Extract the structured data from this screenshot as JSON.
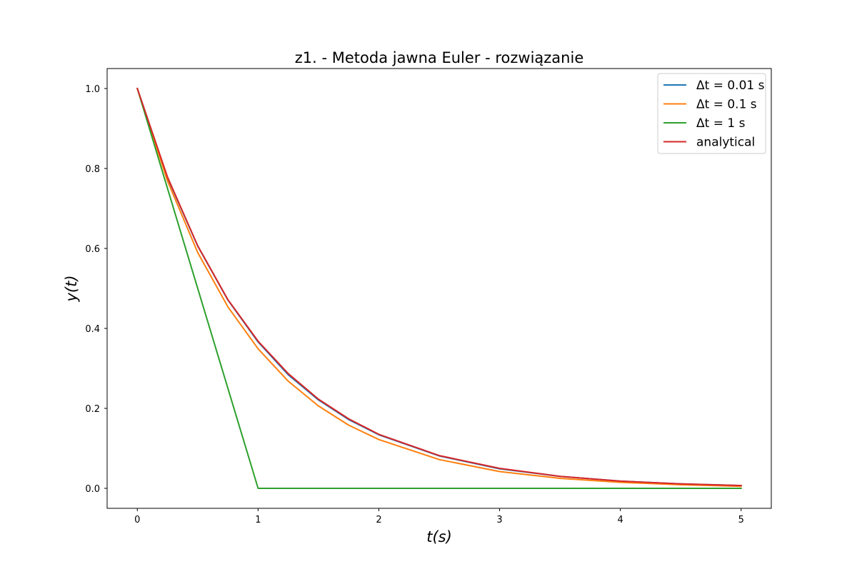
{
  "chart_data": {
    "type": "line",
    "title": "z1. - Metoda jawna Euler - rozwiązanie",
    "xlabel": "t(s)",
    "ylabel": "y(t)",
    "xlim": [
      -0.25,
      5.25
    ],
    "ylim": [
      -0.05,
      1.05
    ],
    "xticks": [
      0,
      1,
      2,
      3,
      4,
      5
    ],
    "xtick_labels": [
      "0",
      "1",
      "2",
      "3",
      "4",
      "5"
    ],
    "yticks": [
      0.0,
      0.2,
      0.4,
      0.6,
      0.8,
      1.0
    ],
    "ytick_labels": [
      "0.0",
      "0.2",
      "0.4",
      "0.6",
      "0.8",
      "1.0"
    ],
    "grid": false,
    "legend_position": "top-right",
    "series": [
      {
        "name": "Δt = 0.01 s",
        "color": "#1f77b4",
        "x": [
          0,
          0.25,
          0.5,
          0.75,
          1,
          1.25,
          1.5,
          1.75,
          2,
          2.5,
          3,
          3.5,
          4,
          4.5,
          5
        ],
        "y": [
          1.0,
          0.777,
          0.606,
          0.471,
          0.366,
          0.284,
          0.221,
          0.172,
          0.134,
          0.081,
          0.049,
          0.03,
          0.018,
          0.011,
          0.007
        ]
      },
      {
        "name": "Δt = 0.1 s",
        "color": "#ff7f0e",
        "x": [
          0,
          0.25,
          0.5,
          0.75,
          1,
          1.25,
          1.5,
          1.75,
          2,
          2.5,
          3,
          3.5,
          4,
          4.5,
          5
        ],
        "y": [
          1.0,
          0.769,
          0.59,
          0.454,
          0.349,
          0.268,
          0.206,
          0.158,
          0.122,
          0.072,
          0.042,
          0.025,
          0.015,
          0.009,
          0.005
        ]
      },
      {
        "name": "Δt = 1 s",
        "color": "#2ca02c",
        "x": [
          0,
          1,
          2,
          3,
          4,
          5
        ],
        "y": [
          1.0,
          0.0,
          0.0,
          0.0,
          0.0,
          0.0
        ]
      },
      {
        "name": "analytical",
        "color": "#d62728",
        "x": [
          0,
          0.25,
          0.5,
          0.75,
          1,
          1.25,
          1.5,
          1.75,
          2,
          2.5,
          3,
          3.5,
          4,
          4.5,
          5
        ],
        "y": [
          1.0,
          0.779,
          0.607,
          0.472,
          0.368,
          0.287,
          0.223,
          0.174,
          0.135,
          0.082,
          0.05,
          0.03,
          0.018,
          0.011,
          0.007
        ]
      }
    ]
  }
}
